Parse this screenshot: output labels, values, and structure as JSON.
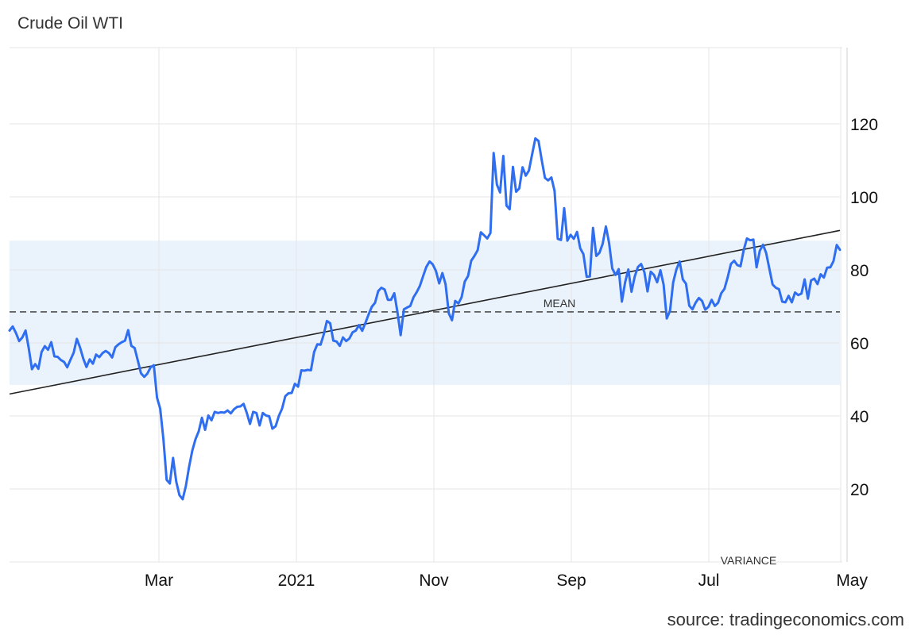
{
  "title": "Crude Oil WTI",
  "source": "source: tradingeconomics.com",
  "colors": {
    "line": "#2f6ef0",
    "band": "#eaf3fb",
    "grid": "#e6e6e6",
    "trend": "#222222",
    "mean": "#333333"
  },
  "chart_data": {
    "type": "line",
    "title": "Crude Oil WTI",
    "xlabel": "",
    "ylabel": "",
    "ylim": [
      0,
      140
    ],
    "yticks": [
      20,
      40,
      60,
      80,
      100,
      120
    ],
    "xticks": [
      "Mar",
      "2021",
      "Nov",
      "Sep",
      "Jul",
      "May"
    ],
    "grid": true,
    "legend": "none",
    "mean": 68.5,
    "mean_label": "MEAN",
    "variance_label": "VARIANCE",
    "std_band": [
      48.5,
      88.0
    ],
    "trend": [
      46.0,
      90.8
    ],
    "series": [
      {
        "values": [
          63.4,
          64.5,
          62.7,
          60.5,
          61.5,
          63.4,
          58.5,
          52.8,
          54.2,
          52.9,
          57.5,
          59.1,
          58.1,
          60.2,
          56.3,
          56.2,
          55.3,
          54.8,
          53.3,
          55.4,
          57.3,
          61.1,
          58.7,
          55.7,
          53.4,
          55.5,
          54.3,
          56.8,
          56.1,
          57.2,
          57.8,
          57.2,
          56.0,
          58.8,
          59.6,
          60.2,
          60.6,
          63.5,
          59.2,
          58.6,
          55.2,
          51.7,
          50.7,
          51.6,
          53.3,
          53.9,
          45.0,
          42.0,
          33.5,
          22.5,
          21.5,
          28.5,
          22.0,
          18.3,
          17.2,
          20.8,
          26.0,
          30.5,
          33.6,
          35.8,
          39.5,
          36.2,
          40.1,
          38.8,
          41.1,
          40.8,
          41.0,
          40.9,
          41.5,
          40.7,
          41.8,
          42.5,
          42.6,
          43.3,
          40.8,
          37.8,
          41.1,
          40.8,
          37.4,
          40.8,
          40.1,
          39.9,
          36.5,
          37.2,
          40.0,
          42.0,
          45.4,
          46.2,
          46.3,
          48.8,
          48.0,
          52.5,
          52.4,
          52.6,
          52.5,
          57.5,
          59.6,
          59.5,
          62.3,
          66.0,
          65.4,
          60.6,
          60.4,
          59.2,
          61.5,
          60.5,
          61.2,
          62.9,
          63.4,
          64.9,
          63.3,
          65.5,
          67.8,
          69.9,
          71.0,
          74.2,
          75.1,
          74.6,
          71.8,
          71.8,
          73.6,
          68.4,
          62.1,
          69.2,
          69.7,
          70.1,
          72.5,
          73.9,
          75.6,
          78.3,
          80.8,
          82.3,
          81.5,
          79.7,
          76.3,
          79.1,
          76.1,
          68.1,
          66.2,
          71.5,
          70.8,
          72.5,
          76.8,
          78.3,
          82.5,
          83.8,
          85.4,
          90.3,
          89.5,
          88.6,
          90.1,
          112.0,
          103.4,
          101.2,
          111.2,
          97.6,
          96.6,
          108.2,
          101.4,
          102.3,
          108.1,
          105.8,
          107.2,
          111.7,
          116.0,
          115.3,
          110.0,
          105.2,
          104.5,
          105.3,
          101.6,
          88.5,
          88.2,
          96.9,
          88.0,
          89.6,
          88.5,
          90.4,
          85.9,
          84.3,
          78.1,
          78.2,
          91.5,
          83.8,
          84.7,
          87.1,
          91.9,
          87.4,
          80.4,
          78.6,
          80.2,
          71.3,
          76.6,
          80.1,
          74.0,
          78.2,
          80.8,
          81.6,
          79.4,
          74.1,
          79.5,
          78.6,
          76.6,
          79.9,
          76.0,
          66.7,
          68.8,
          76.6,
          80.1,
          82.3,
          77.4,
          76.2,
          70.2,
          69.2,
          71.0,
          72.3,
          71.5,
          69.1,
          69.9,
          71.8,
          70.1,
          71.0,
          73.6,
          74.8,
          78.0,
          81.6,
          82.5,
          81.3,
          81.0,
          85.5,
          88.6,
          88.1,
          88.3,
          80.7,
          85.2,
          86.9,
          84.6,
          80.3,
          76.0,
          75.1,
          74.7,
          71.3,
          71.1,
          72.9,
          71.1,
          73.8,
          73.1,
          73.5,
          77.4,
          72.1,
          77.1,
          77.6,
          76.1,
          78.8,
          77.9,
          80.6,
          80.7,
          82.4,
          86.8,
          85.5
        ]
      }
    ]
  }
}
